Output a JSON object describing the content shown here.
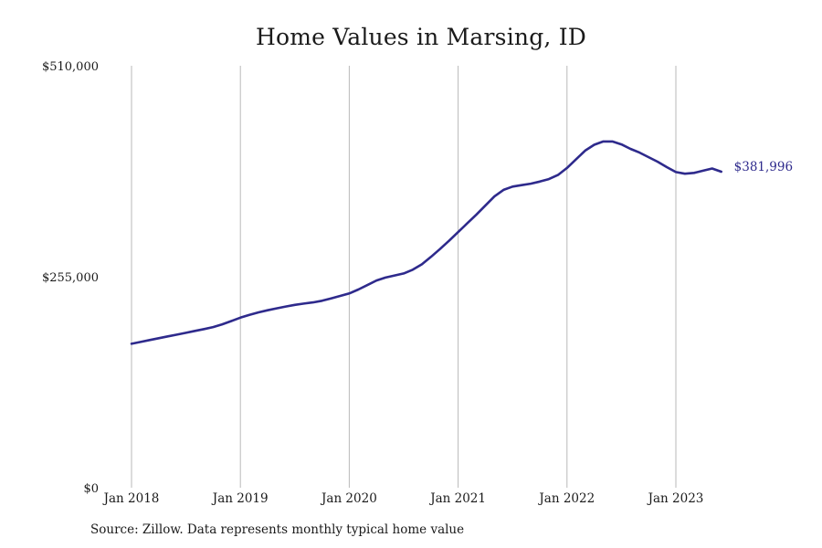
{
  "chart_data": {
    "type": "line",
    "title": "Home Values in Marsing, ID",
    "xlabel": "",
    "ylabel": "",
    "x_tick_labels": [
      "Jan 2018",
      "Jan 2019",
      "Jan 2020",
      "Jan 2021",
      "Jan 2022",
      "Jan 2023"
    ],
    "y_tick_labels": [
      "$510,000",
      "$255,000",
      "$0"
    ],
    "ylim": [
      0,
      510000
    ],
    "grid": "vertical",
    "legend": "none",
    "line_color": "#2e2a8c",
    "end_label": "$381,996",
    "series": [
      {
        "x": [
          "2018-01",
          "2018-02",
          "2018-03",
          "2018-04",
          "2018-05",
          "2018-06",
          "2018-07",
          "2018-08",
          "2018-09",
          "2018-10",
          "2018-11",
          "2018-12",
          "2019-01",
          "2019-02",
          "2019-03",
          "2019-04",
          "2019-05",
          "2019-06",
          "2019-07",
          "2019-08",
          "2019-09",
          "2019-10",
          "2019-11",
          "2019-12",
          "2020-01",
          "2020-02",
          "2020-03",
          "2020-04",
          "2020-05",
          "2020-06",
          "2020-07",
          "2020-08",
          "2020-09",
          "2020-10",
          "2020-11",
          "2020-12",
          "2021-01",
          "2021-02",
          "2021-03",
          "2021-04",
          "2021-05",
          "2021-06",
          "2021-07",
          "2021-08",
          "2021-09",
          "2021-10",
          "2021-11",
          "2021-12",
          "2022-01",
          "2022-02",
          "2022-03",
          "2022-04",
          "2022-05",
          "2022-06",
          "2022-07",
          "2022-08",
          "2022-09",
          "2022-10",
          "2022-11",
          "2022-12",
          "2023-01",
          "2023-02",
          "2023-03",
          "2023-04",
          "2023-05",
          "2023-06"
        ],
        "values": [
          174000,
          176200,
          178500,
          180700,
          182900,
          185000,
          187200,
          189500,
          191700,
          194200,
          197500,
          201500,
          205500,
          209000,
          212000,
          214500,
          216800,
          219000,
          221000,
          222600,
          224000,
          226000,
          228800,
          231800,
          234800,
          239500,
          245000,
          250500,
          254000,
          256500,
          259000,
          263500,
          270000,
          279000,
          288500,
          298500,
          309000,
          319500,
          330000,
          341000,
          352000,
          360000,
          364000,
          365700,
          367500,
          370000,
          373000,
          378000,
          386500,
          397000,
          407500,
          414500,
          418500,
          418500,
          415000,
          409500,
          405000,
          399500,
          394000,
          387500,
          381500,
          379500,
          380500,
          383200,
          385800,
          381996
        ]
      }
    ]
  }
}
